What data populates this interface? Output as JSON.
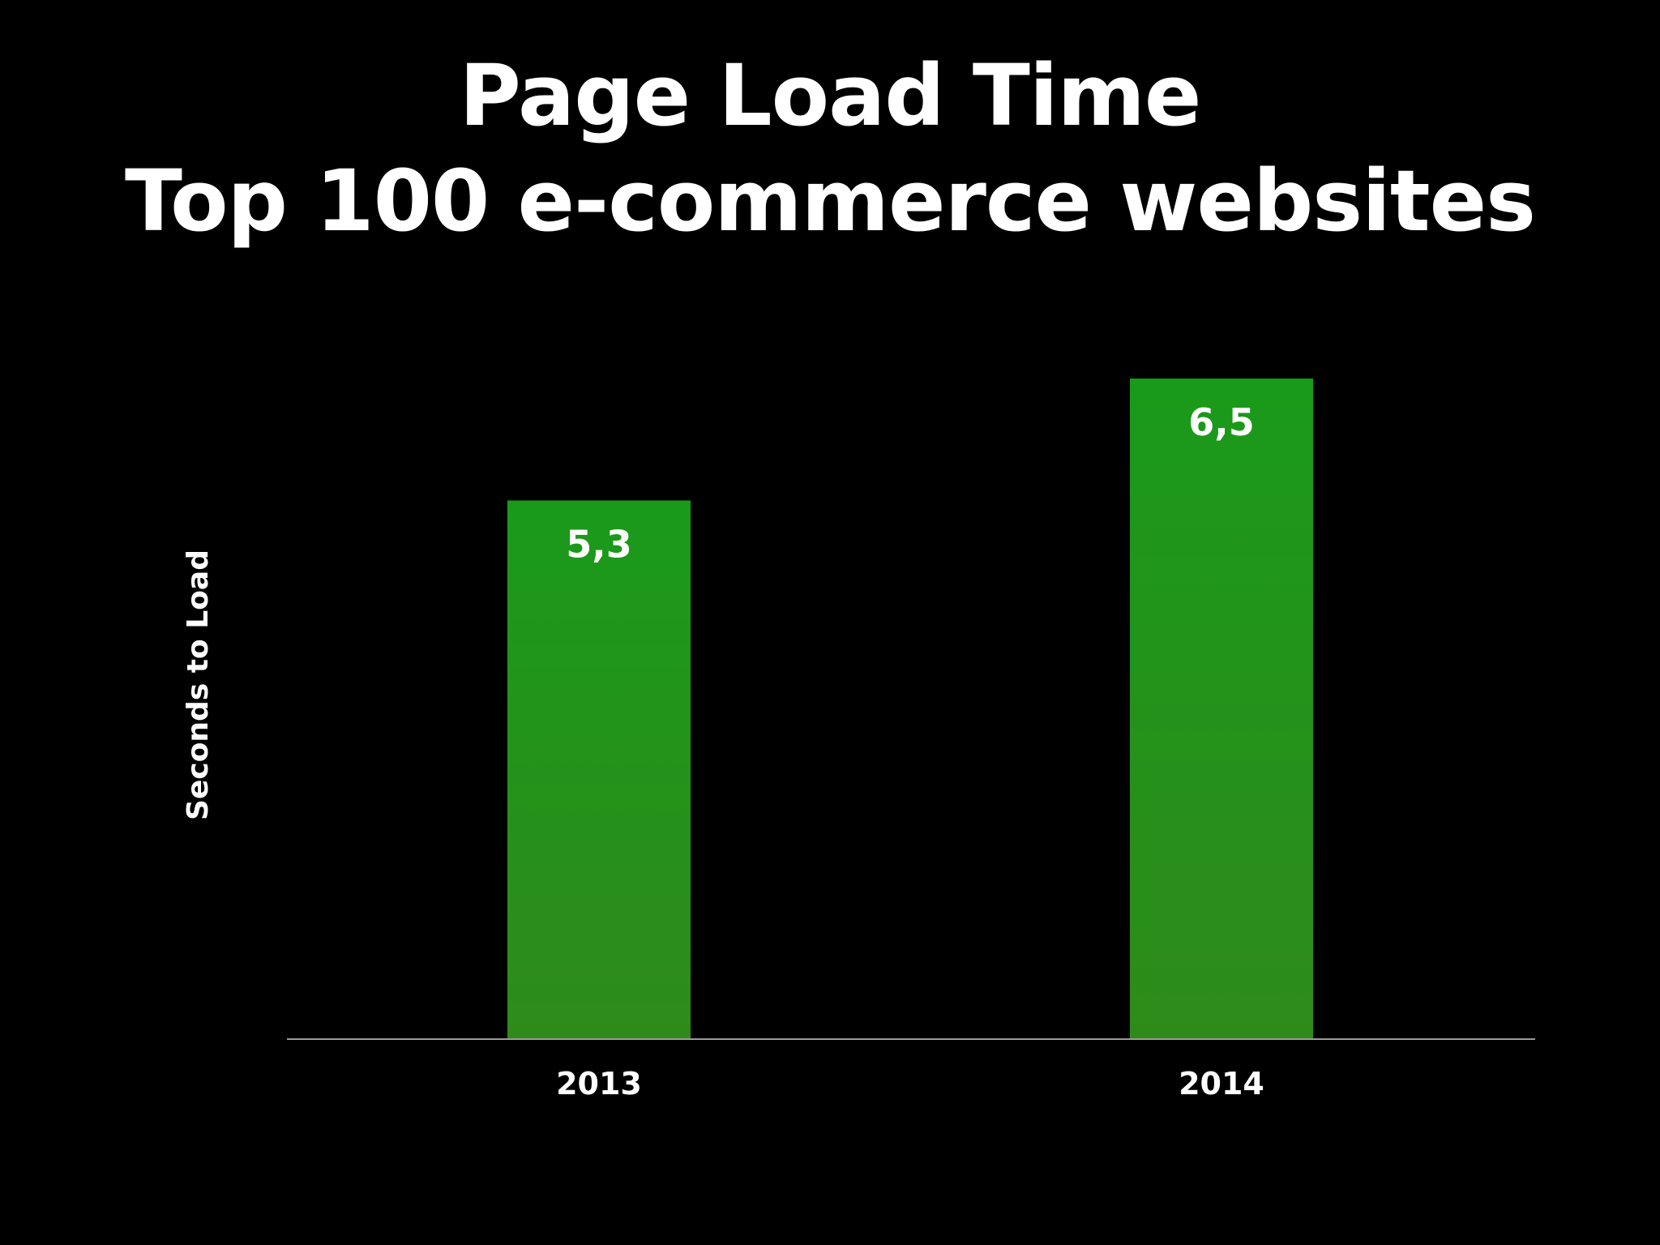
{
  "chart_data": {
    "type": "bar",
    "title": "Page Load Time",
    "subtitle": "Top 100 e-commerce websites",
    "xlabel": "",
    "ylabel": "Seconds to Load",
    "categories": [
      "2013",
      "2014"
    ],
    "values": [
      5.3,
      6.5
    ],
    "value_labels": [
      "5,3",
      "6,5"
    ],
    "ylim": [
      0,
      6.5
    ],
    "grid": false,
    "legend": "none",
    "colors": {
      "bar_top": "#1a9a1a",
      "bar_bottom": "#2e8b1a",
      "axis": "#9a9a9a",
      "background": "#000000",
      "text": "#ffffff"
    }
  }
}
